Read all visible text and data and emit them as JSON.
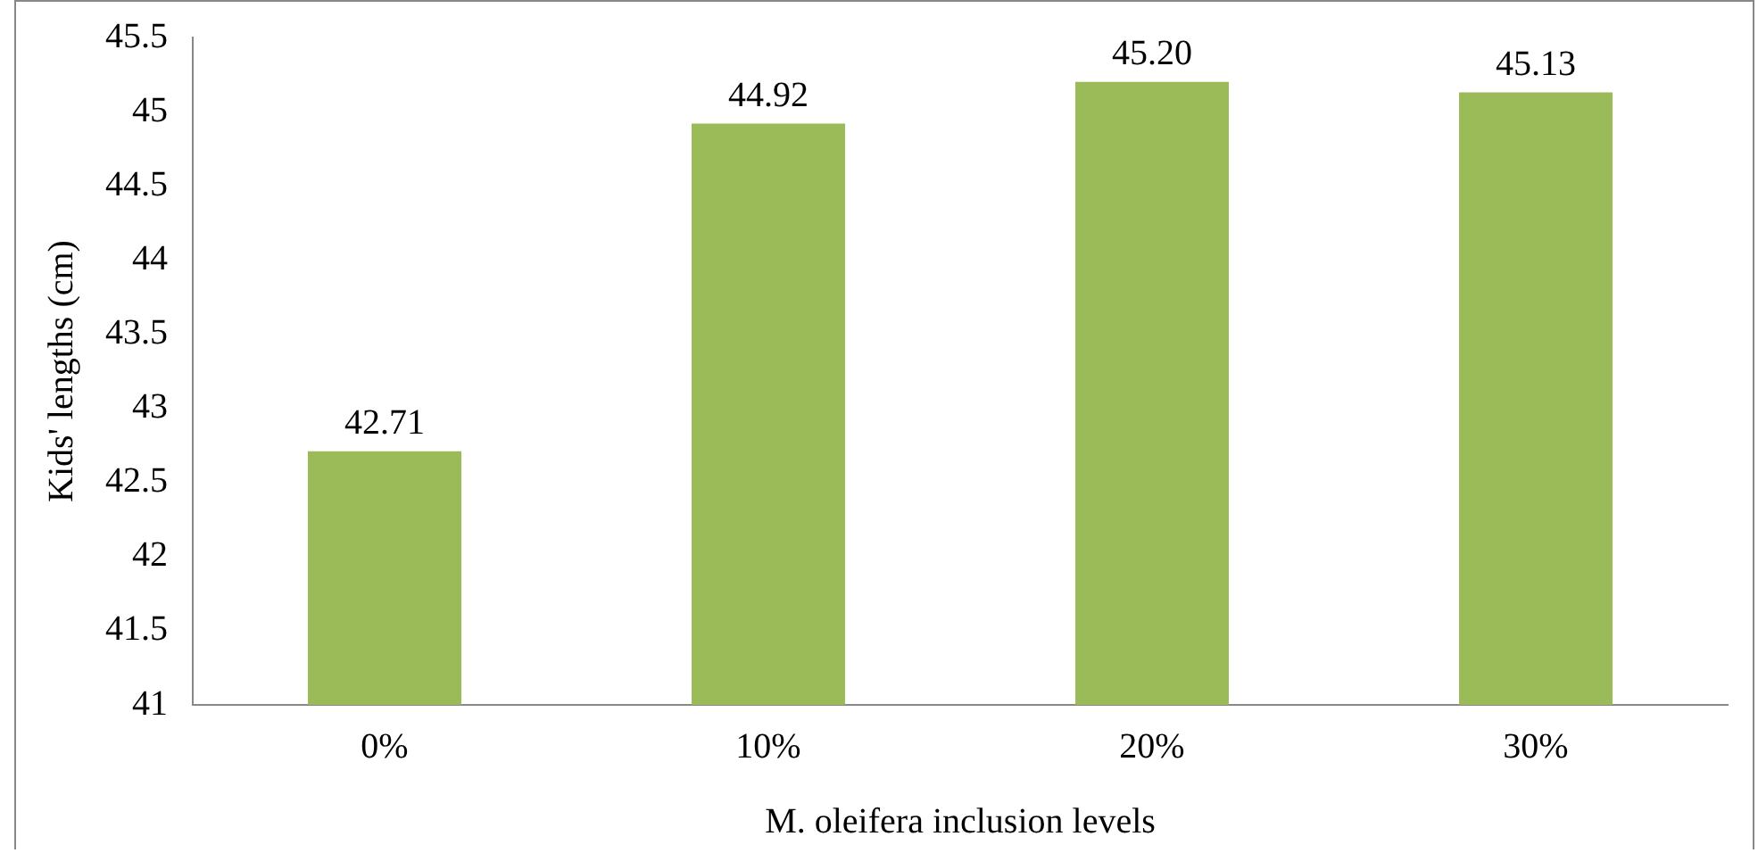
{
  "chart_data": {
    "type": "bar",
    "xlabel": "M. oleifera inclusion levels",
    "ylabel": "Kids' lengths (cm)",
    "categories": [
      "0%",
      "10%",
      "20%",
      "30%"
    ],
    "values": [
      42.71,
      44.92,
      45.2,
      45.13
    ],
    "value_labels": [
      "42.71",
      "44.92",
      "45.20",
      "45.13"
    ],
    "color": "#9bbb59",
    "ylim": [
      41,
      45.5
    ],
    "yticks": [
      41,
      41.5,
      42,
      42.5,
      43,
      43.5,
      44,
      44.5,
      45,
      45.5
    ],
    "grid": false
  }
}
